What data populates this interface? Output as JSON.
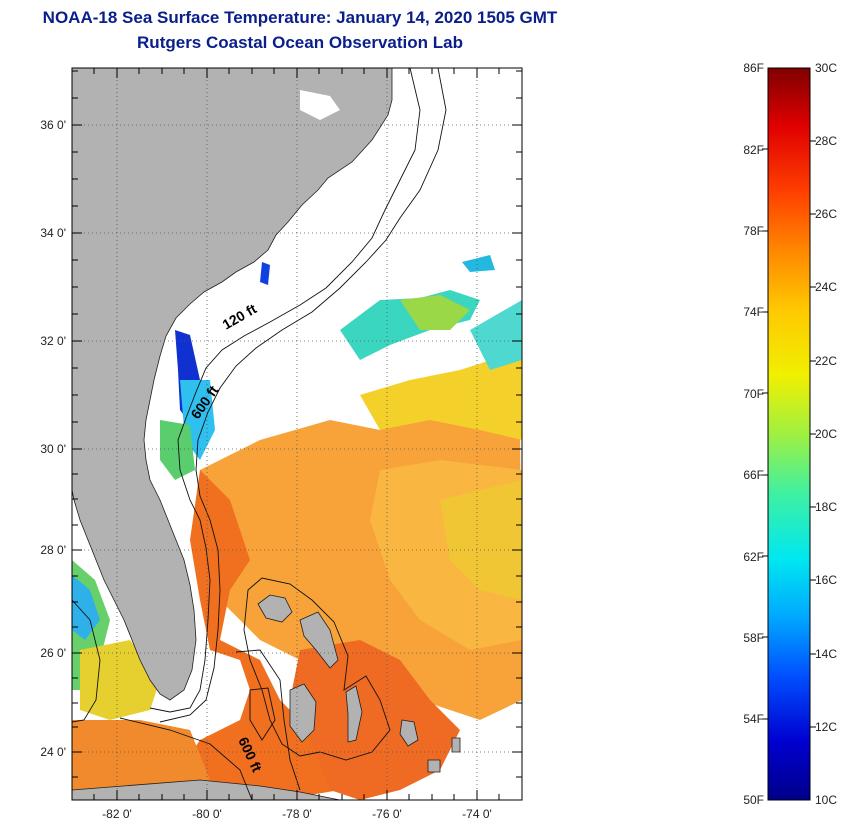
{
  "map": {
    "title": "NOAA-18 Sea Surface Temperature:  January 14, 2020 1505 GMT",
    "subtitle": "Rutgers Coastal Ocean Observation Lab",
    "lat_labels": [
      "36 0'",
      "34 0'",
      "32 0'",
      "30 0'",
      "28 0'",
      "26 0'",
      "24 0'"
    ],
    "lon_labels": [
      "-82 0'",
      "-80 0'",
      "-78 0'",
      "-76 0'",
      "-74 0'"
    ],
    "contour_labels": [
      "120 ft",
      "600 ft",
      "600 ft"
    ],
    "colors": {
      "land": "#b2b2b2",
      "ocean_no_data": "#ffffff",
      "title": "#0a1e8c"
    }
  },
  "colorbar": {
    "fahrenheit_labels": [
      "86F",
      "82F",
      "78F",
      "74F",
      "70F",
      "66F",
      "62F",
      "58F",
      "54F",
      "50F"
    ],
    "celsius_labels": [
      "30C",
      "28C",
      "26C",
      "24C",
      "22C",
      "20C",
      "18C",
      "16C",
      "14C",
      "12C",
      "10C"
    ],
    "stops": [
      "#00008a",
      "#0000d0",
      "#0050ff",
      "#00a8ff",
      "#00e8f0",
      "#40f0a0",
      "#a0f040",
      "#f0f000",
      "#ffc800",
      "#ff8800",
      "#ff4000",
      "#e00000",
      "#800000"
    ]
  }
}
